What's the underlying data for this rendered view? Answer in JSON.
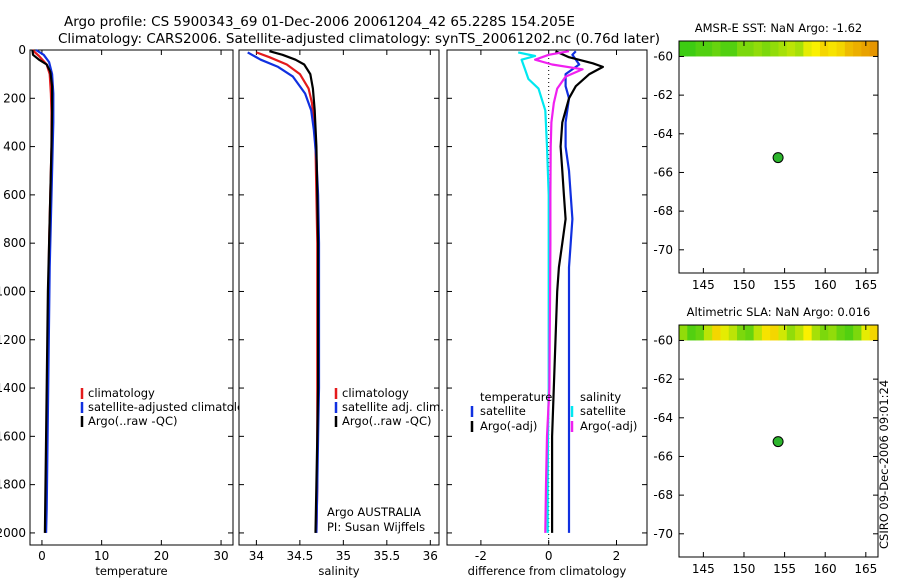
{
  "header": {
    "line1": "Argo profile: CS 5900343_69 01-Dec-2006 20061204_42 65.228S 154.205E",
    "line2": "Climatology: CARS2006. Satellite-adjusted climatology: synTS_20061202.nc (0.76d later)"
  },
  "side_stamp": "CSIRO 09-Dec-2006 09:01:24",
  "colors": {
    "red": "#e41a1c",
    "blue": "#1030e0",
    "black": "#000000",
    "cyan": "#00e8f0",
    "magenta": "#f020f0"
  },
  "chart_data": [
    {
      "id": "temperature",
      "type": "line",
      "xlabel": "temperature",
      "ylabel": "",
      "xlim": [
        -2,
        32
      ],
      "ylim": [
        2050,
        0
      ],
      "xticks": [
        0,
        10,
        20,
        30
      ],
      "yticks": [
        0,
        200,
        400,
        600,
        800,
        1000,
        1200,
        1400,
        1600,
        1800,
        2000
      ],
      "legend": "middle-right",
      "series": [
        {
          "name": "climatology",
          "color": "red",
          "points": [
            [
              -1.6,
              0
            ],
            [
              -0.5,
              25
            ],
            [
              0.8,
              60
            ],
            [
              1.3,
              100
            ],
            [
              1.5,
              180
            ],
            [
              1.6,
              260
            ],
            [
              1.6,
              400
            ],
            [
              1.4,
              600
            ],
            [
              1.2,
              800
            ],
            [
              1.1,
              1000
            ],
            [
              1.0,
              1200
            ],
            [
              0.9,
              1400
            ],
            [
              0.8,
              1600
            ],
            [
              0.7,
              1800
            ],
            [
              0.6,
              2000
            ]
          ]
        },
        {
          "name": "satellite-adjusted climatology",
          "color": "blue",
          "points": [
            [
              -1.0,
              0
            ],
            [
              0.3,
              20
            ],
            [
              1.2,
              50
            ],
            [
              1.7,
              100
            ],
            [
              1.9,
              180
            ],
            [
              1.9,
              300
            ],
            [
              1.7,
              500
            ],
            [
              1.5,
              700
            ],
            [
              1.3,
              900
            ],
            [
              1.2,
              1100
            ],
            [
              1.1,
              1300
            ],
            [
              1.0,
              1500
            ],
            [
              0.9,
              1700
            ],
            [
              0.8,
              1900
            ],
            [
              0.7,
              2000
            ]
          ]
        },
        {
          "name": "Argo(..raw -QC)",
          "color": "black",
          "points": [
            [
              -1.6,
              0
            ],
            [
              -1.5,
              20
            ],
            [
              -0.5,
              40
            ],
            [
              0.8,
              60
            ],
            [
              1.4,
              90
            ],
            [
              1.7,
              150
            ],
            [
              1.7,
              250
            ],
            [
              1.6,
              400
            ],
            [
              1.4,
              600
            ],
            [
              1.2,
              800
            ],
            [
              1.0,
              1000
            ],
            [
              0.9,
              1200
            ],
            [
              0.8,
              1400
            ],
            [
              0.7,
              1600
            ],
            [
              0.6,
              1800
            ],
            [
              0.5,
              2000
            ]
          ]
        }
      ]
    },
    {
      "id": "salinity",
      "type": "line",
      "xlabel": "salinity",
      "ylabel": "",
      "xlim": [
        33.8,
        36.1
      ],
      "ylim": [
        2050,
        0
      ],
      "xticks": [
        34,
        34.5,
        35,
        35.5,
        36
      ],
      "xtick_labels": [
        "34",
        "34.5",
        "35",
        "35.5",
        "36"
      ],
      "legend": "middle-right",
      "annotation": [
        "Argo AUSTRALIA",
        "PI: Susan Wijffels"
      ],
      "series": [
        {
          "name": "climatology",
          "color": "red",
          "points": [
            [
              34.0,
              10
            ],
            [
              34.15,
              30
            ],
            [
              34.35,
              60
            ],
            [
              34.5,
              100
            ],
            [
              34.6,
              160
            ],
            [
              34.64,
              220
            ],
            [
              34.66,
              300
            ],
            [
              34.68,
              400
            ],
            [
              34.69,
              600
            ],
            [
              34.7,
              800
            ],
            [
              34.7,
              1000
            ],
            [
              34.7,
              1200
            ],
            [
              34.7,
              1400
            ],
            [
              34.7,
              1600
            ],
            [
              34.7,
              1800
            ],
            [
              34.69,
              2000
            ]
          ]
        },
        {
          "name": "satellite adj. clim.",
          "color": "blue",
          "points": [
            [
              33.9,
              10
            ],
            [
              34.05,
              40
            ],
            [
              34.25,
              70
            ],
            [
              34.42,
              110
            ],
            [
              34.56,
              180
            ],
            [
              34.63,
              250
            ],
            [
              34.66,
              330
            ],
            [
              34.69,
              450
            ],
            [
              34.71,
              600
            ],
            [
              34.72,
              800
            ],
            [
              34.72,
              1000
            ],
            [
              34.72,
              1200
            ],
            [
              34.72,
              1400
            ],
            [
              34.71,
              1600
            ],
            [
              34.7,
              1800
            ],
            [
              34.69,
              2000
            ]
          ]
        },
        {
          "name": "Argo(..raw -QC)",
          "color": "black",
          "points": [
            [
              34.15,
              5
            ],
            [
              34.3,
              20
            ],
            [
              34.45,
              40
            ],
            [
              34.55,
              60
            ],
            [
              34.62,
              100
            ],
            [
              34.65,
              160
            ],
            [
              34.67,
              250
            ],
            [
              34.69,
              400
            ],
            [
              34.7,
              600
            ],
            [
              34.71,
              800
            ],
            [
              34.71,
              1000
            ],
            [
              34.71,
              1200
            ],
            [
              34.71,
              1400
            ],
            [
              34.7,
              1600
            ],
            [
              34.69,
              1800
            ],
            [
              34.68,
              2000
            ]
          ]
        }
      ]
    },
    {
      "id": "difference",
      "type": "line",
      "xlabel": "difference from climatology",
      "ylabel": "",
      "xlim": [
        -3.0,
        2.9
      ],
      "ylim": [
        2050,
        0
      ],
      "xticks": [
        -2,
        0,
        2
      ],
      "zero_line": true,
      "legend": "middle",
      "legend_groups": [
        {
          "title": "temperature",
          "items": [
            {
              "name": "satellite",
              "color": "blue"
            },
            {
              "name": "Argo(-adj)",
              "color": "black"
            }
          ]
        },
        {
          "title": "salinity",
          "items": [
            {
              "name": "satellite",
              "color": "cyan"
            },
            {
              "name": "Argo(-adj)",
              "color": "magenta"
            }
          ]
        }
      ],
      "series": [
        {
          "name": "temperature satellite",
          "color": "blue",
          "points": [
            [
              0.8,
              5
            ],
            [
              0.7,
              20
            ],
            [
              0.9,
              60
            ],
            [
              0.5,
              100
            ],
            [
              0.5,
              150
            ],
            [
              0.6,
              200
            ],
            [
              0.5,
              300
            ],
            [
              0.5,
              400
            ],
            [
              0.6,
              500
            ],
            [
              0.65,
              600
            ],
            [
              0.7,
              700
            ],
            [
              0.65,
              800
            ],
            [
              0.6,
              900
            ],
            [
              0.6,
              1000
            ],
            [
              0.6,
              1200
            ],
            [
              0.6,
              1400
            ],
            [
              0.6,
              1600
            ],
            [
              0.6,
              1800
            ],
            [
              0.6,
              2000
            ]
          ]
        },
        {
          "name": "temperature Argo(-adj)",
          "color": "black",
          "points": [
            [
              0.2,
              5
            ],
            [
              0.6,
              30
            ],
            [
              1.3,
              55
            ],
            [
              1.6,
              70
            ],
            [
              1.2,
              100
            ],
            [
              0.8,
              150
            ],
            [
              0.6,
              200
            ],
            [
              0.4,
              300
            ],
            [
              0.35,
              400
            ],
            [
              0.4,
              500
            ],
            [
              0.45,
              600
            ],
            [
              0.5,
              700
            ],
            [
              0.4,
              800
            ],
            [
              0.3,
              900
            ],
            [
              0.25,
              1000
            ],
            [
              0.2,
              1200
            ],
            [
              0.15,
              1400
            ],
            [
              0.1,
              1600
            ],
            [
              0.1,
              1800
            ],
            [
              0.1,
              2000
            ]
          ]
        },
        {
          "name": "salinity satellite",
          "color": "cyan",
          "points": [
            [
              -0.9,
              10
            ],
            [
              -0.4,
              25
            ],
            [
              -0.8,
              40
            ],
            [
              -0.7,
              80
            ],
            [
              -0.6,
              120
            ],
            [
              -0.3,
              160
            ],
            [
              -0.1,
              250
            ],
            [
              -0.05,
              400
            ],
            [
              0.0,
              600
            ],
            [
              0.0,
              800
            ],
            [
              0.0,
              1000
            ],
            [
              0.0,
              1200
            ],
            [
              0.0,
              1400
            ],
            [
              -0.02,
              1600
            ],
            [
              -0.03,
              1800
            ],
            [
              -0.03,
              2000
            ]
          ]
        },
        {
          "name": "salinity Argo(-adj)",
          "color": "magenta",
          "points": [
            [
              0.6,
              5
            ],
            [
              0.0,
              20
            ],
            [
              -0.4,
              40
            ],
            [
              0.1,
              60
            ],
            [
              1.0,
              80
            ],
            [
              0.5,
              110
            ],
            [
              0.25,
              160
            ],
            [
              0.15,
              220
            ],
            [
              0.08,
              300
            ],
            [
              0.06,
              400
            ],
            [
              0.05,
              600
            ],
            [
              0.05,
              800
            ],
            [
              0.04,
              1000
            ],
            [
              0.03,
              1200
            ],
            [
              0.02,
              1400
            ],
            [
              -0.05,
              1600
            ],
            [
              -0.08,
              1800
            ],
            [
              -0.1,
              2000
            ]
          ]
        }
      ]
    },
    {
      "id": "sst_map",
      "type": "heatmap",
      "title": "AMSR-E SST: NaN Argo: -1.62",
      "xlim": [
        142,
        166.5
      ],
      "ylim": [
        -71.2,
        -59.2
      ],
      "xticks": [
        145,
        150,
        155,
        160,
        165
      ],
      "yticks": [
        -60,
        -62,
        -64,
        -66,
        -68,
        -70
      ],
      "band_lat": [
        -59.2,
        -60.0
      ],
      "band_cells": [
        0.05,
        0.05,
        0.1,
        0.1,
        0.15,
        0.1,
        0.1,
        0.2,
        0.2,
        0.25,
        0.2,
        0.25,
        0.3,
        0.35,
        0.3,
        0.45,
        0.5,
        0.6,
        0.55,
        0.6,
        0.7,
        0.75,
        0.8,
        0.85
      ],
      "float_position": [
        154.2,
        -65.23
      ]
    },
    {
      "id": "sla_map",
      "type": "heatmap",
      "title": "Altimetric SLA: NaN Argo: 0.016",
      "xlim": [
        142,
        166.5
      ],
      "ylim": [
        -71.2,
        -59.2
      ],
      "xticks": [
        145,
        150,
        155,
        160,
        165
      ],
      "yticks": [
        -60,
        -62,
        -64,
        -66,
        -68,
        -70
      ],
      "band_lat": [
        -59.2,
        -60.0
      ],
      "band_cells": [
        0.25,
        0.1,
        0.15,
        0.35,
        0.6,
        0.45,
        0.35,
        0.2,
        0.15,
        0.35,
        0.55,
        0.6,
        0.4,
        0.25,
        0.35,
        0.5,
        0.3,
        0.2,
        0.25,
        0.15,
        0.1,
        0.2,
        0.45,
        0.6
      ],
      "float_position": [
        154.2,
        -65.23
      ]
    }
  ]
}
